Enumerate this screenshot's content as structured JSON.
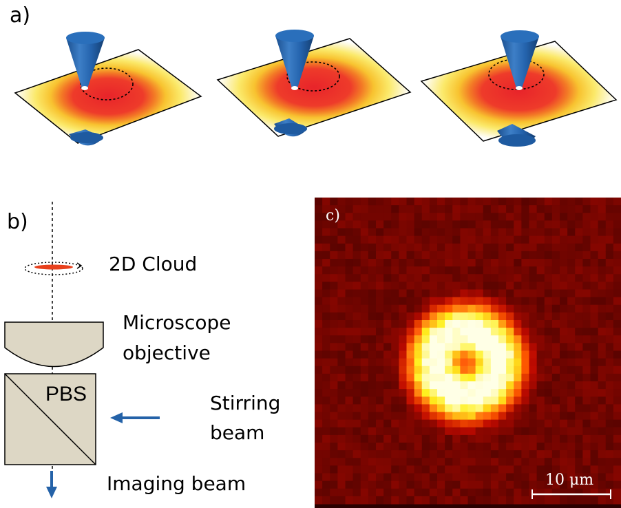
{
  "panel_a": {
    "label": "a)"
  },
  "panel_b": {
    "label": "b)",
    "cloud_label": "2D Cloud",
    "objective_label_line1": "Microscope",
    "objective_label_line2": "objective",
    "pbs_label": "PBS",
    "stirring_label_line1": "Stirring",
    "stirring_label_line2": "beam",
    "imaging_label": "Imaging beam",
    "colors": {
      "beam_arrow": "#2462a8",
      "optic_fill": "#ddd7c5",
      "cloud": "#e8401c"
    }
  },
  "panel_c": {
    "label": "c)",
    "scale_bar_label": "10 μm",
    "colors": {
      "background": "#2a0000",
      "ring": "#ff3000",
      "bright": "#ffee40",
      "peak": "#ffffff"
    }
  },
  "icons": {
    "stir-beam-cone": "cone",
    "density-plane": "gradient-plane"
  }
}
